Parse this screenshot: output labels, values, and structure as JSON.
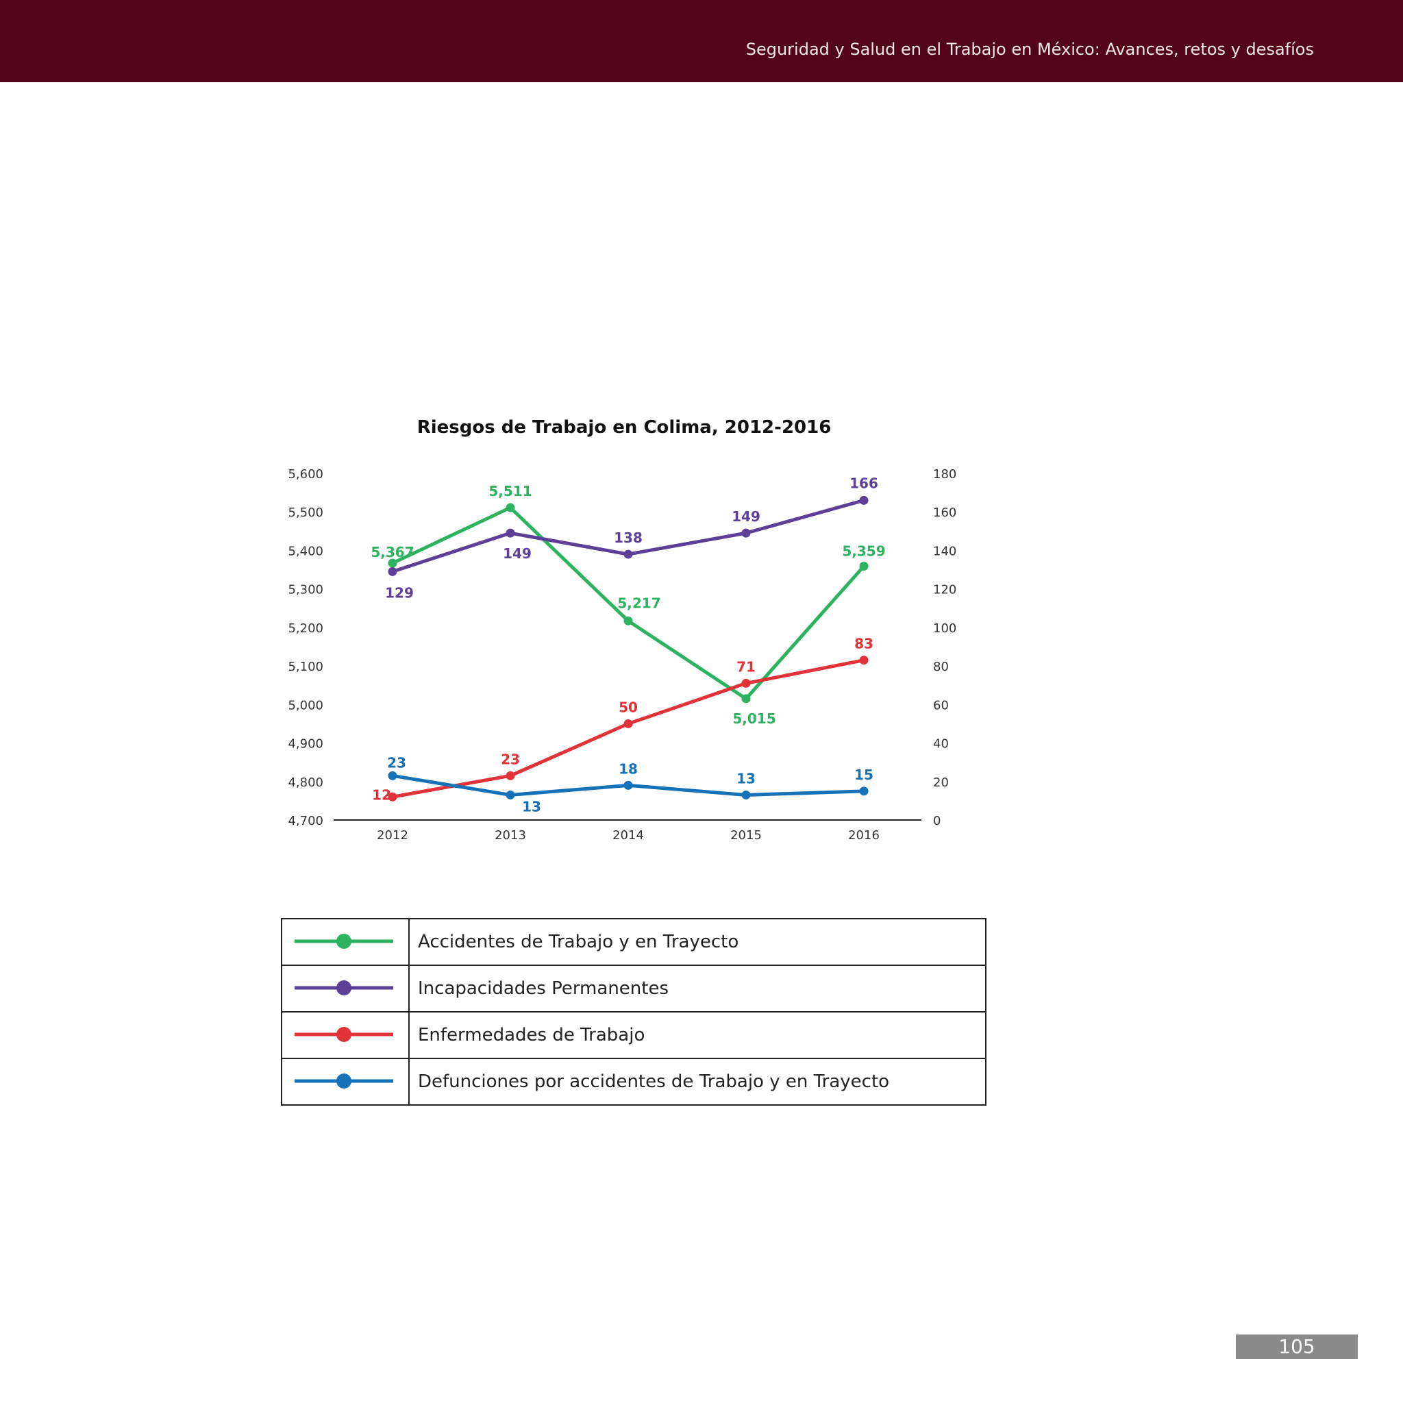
{
  "header": {
    "title": "Seguridad y Salud en el Trabajo en México: Avances, retos y desafíos",
    "bar_color": "#520418"
  },
  "page_number": "105",
  "chart_data": {
    "type": "line",
    "title": "Riesgos de Trabajo en Colima, 2012-2016",
    "xlabel": "",
    "ylabel": "",
    "x": [
      "2012",
      "2013",
      "2014",
      "2015",
      "2016"
    ],
    "y_left": {
      "lim": [
        4700,
        5600
      ],
      "ticks": [
        "4,700",
        "4,800",
        "4,900",
        "5,000",
        "5,100",
        "5,200",
        "5,300",
        "5,400",
        "5,500",
        "5,600"
      ]
    },
    "y_right": {
      "lim": [
        0,
        180
      ],
      "ticks": [
        "0",
        "20",
        "40",
        "60",
        "80",
        "100",
        "120",
        "140",
        "160",
        "180"
      ]
    },
    "grid": false,
    "series": [
      {
        "name": "Accidentes de Trabajo y en Trayecto",
        "axis": "left",
        "color": "#2db25f",
        "values": [
          5367,
          5511,
          5217,
          5015,
          5359
        ],
        "labels": [
          "5,367",
          "5,511",
          "5,217",
          "5,015",
          "5,359"
        ]
      },
      {
        "name": "Incapacidades Permanentes",
        "axis": "right",
        "color": "#5e3f98",
        "values": [
          129,
          149,
          138,
          149,
          166
        ],
        "labels": [
          "129",
          "149",
          "138",
          "149",
          "166"
        ]
      },
      {
        "name": "Enfermedades de Trabajo",
        "axis": "right",
        "color": "#e03237",
        "values": [
          12,
          23,
          50,
          71,
          83
        ],
        "labels": [
          "12",
          "23",
          "50",
          "71",
          "83"
        ]
      },
      {
        "name": "Defunciones por accidentes de Trabajo y en Trayecto",
        "axis": "right",
        "color": "#1571b8",
        "values": [
          23,
          13,
          18,
          13,
          15
        ],
        "labels": [
          "23",
          "13",
          "18",
          "13",
          "15"
        ]
      }
    ]
  },
  "legend": [
    {
      "label": "Accidentes de Trabajo y en Trayecto",
      "color": "#2db25f"
    },
    {
      "label": "Incapacidades Permanentes",
      "color": "#5e3f98"
    },
    {
      "label": "Enfermedades de Trabajo",
      "color": "#e03237"
    },
    {
      "label": "Defunciones por accidentes de Trabajo y en Trayecto",
      "color": "#1571b8"
    }
  ]
}
